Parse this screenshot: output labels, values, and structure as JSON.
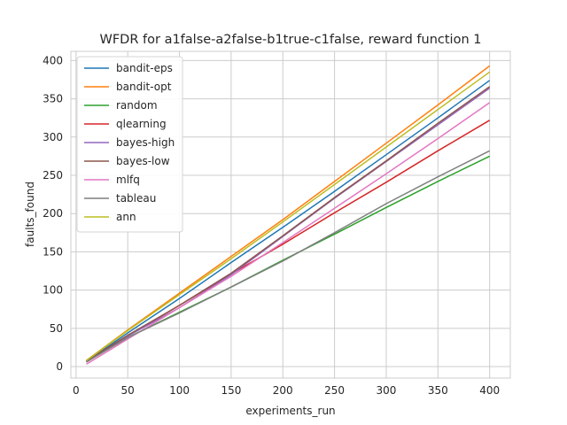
{
  "chart_data": {
    "type": "line",
    "title": "WFDR for a1false-a2false-b1true-c1false, reward function 1",
    "xlabel": "experiments_run",
    "ylabel": "faults_found",
    "xlim": [
      -5,
      420
    ],
    "ylim": [
      -15,
      412
    ],
    "xticks": [
      0,
      50,
      100,
      150,
      200,
      250,
      300,
      350,
      400
    ],
    "yticks": [
      0,
      50,
      100,
      150,
      200,
      250,
      300,
      350,
      400
    ],
    "grid": true,
    "legend_position": "upper-left",
    "series": [
      {
        "name": "bandit-eps",
        "color": "#1f77b4",
        "points": [
          [
            10,
            7
          ],
          [
            50,
            44
          ],
          [
            100,
            89
          ],
          [
            150,
            136
          ],
          [
            200,
            182
          ],
          [
            250,
            229
          ],
          [
            300,
            277
          ],
          [
            350,
            325
          ],
          [
            400,
            374
          ]
        ]
      },
      {
        "name": "bandit-opt",
        "color": "#ff7f0e",
        "points": [
          [
            10,
            8
          ],
          [
            50,
            48
          ],
          [
            100,
            96
          ],
          [
            150,
            144
          ],
          [
            200,
            192
          ],
          [
            250,
            242
          ],
          [
            300,
            292
          ],
          [
            350,
            342
          ],
          [
            400,
            393
          ]
        ]
      },
      {
        "name": "random",
        "color": "#2ca02c",
        "points": [
          [
            10,
            6
          ],
          [
            50,
            38
          ],
          [
            100,
            71
          ],
          [
            150,
            104
          ],
          [
            200,
            139
          ],
          [
            250,
            173
          ],
          [
            300,
            208
          ],
          [
            350,
            242
          ],
          [
            400,
            275
          ]
        ]
      },
      {
        "name": "qlearning",
        "color": "#d62728",
        "points": [
          [
            10,
            6
          ],
          [
            50,
            40
          ],
          [
            100,
            80
          ],
          [
            150,
            121
          ],
          [
            200,
            160
          ],
          [
            250,
            201
          ],
          [
            300,
            241
          ],
          [
            350,
            282
          ],
          [
            400,
            322
          ]
        ]
      },
      {
        "name": "bayes-high",
        "color": "#9467bd",
        "points": [
          [
            10,
            7
          ],
          [
            50,
            40
          ],
          [
            100,
            77
          ],
          [
            150,
            120
          ],
          [
            200,
            170
          ],
          [
            250,
            220
          ],
          [
            300,
            268
          ],
          [
            350,
            316
          ],
          [
            400,
            364
          ]
        ]
      },
      {
        "name": "bayes-low",
        "color": "#8c564b",
        "points": [
          [
            10,
            7
          ],
          [
            50,
            41
          ],
          [
            100,
            80
          ],
          [
            150,
            122
          ],
          [
            200,
            171
          ],
          [
            250,
            221
          ],
          [
            300,
            269
          ],
          [
            350,
            318
          ],
          [
            400,
            366
          ]
        ]
      },
      {
        "name": "mlfq",
        "color": "#e377c2",
        "points": [
          [
            10,
            3
          ],
          [
            50,
            36
          ],
          [
            100,
            77
          ],
          [
            150,
            118
          ],
          [
            200,
            162
          ],
          [
            250,
            207
          ],
          [
            300,
            252
          ],
          [
            350,
            298
          ],
          [
            400,
            345
          ]
        ]
      },
      {
        "name": "tableau",
        "color": "#7f7f7f",
        "points": [
          [
            10,
            6
          ],
          [
            50,
            38
          ],
          [
            100,
            70
          ],
          [
            150,
            104
          ],
          [
            200,
            138
          ],
          [
            250,
            175
          ],
          [
            300,
            213
          ],
          [
            350,
            248
          ],
          [
            400,
            282
          ]
        ]
      },
      {
        "name": "ann",
        "color": "#bcbd22",
        "points": [
          [
            10,
            8
          ],
          [
            50,
            47
          ],
          [
            100,
            94
          ],
          [
            150,
            141
          ],
          [
            200,
            189
          ],
          [
            250,
            238
          ],
          [
            300,
            287
          ],
          [
            350,
            336
          ],
          [
            400,
            385
          ]
        ]
      }
    ]
  }
}
